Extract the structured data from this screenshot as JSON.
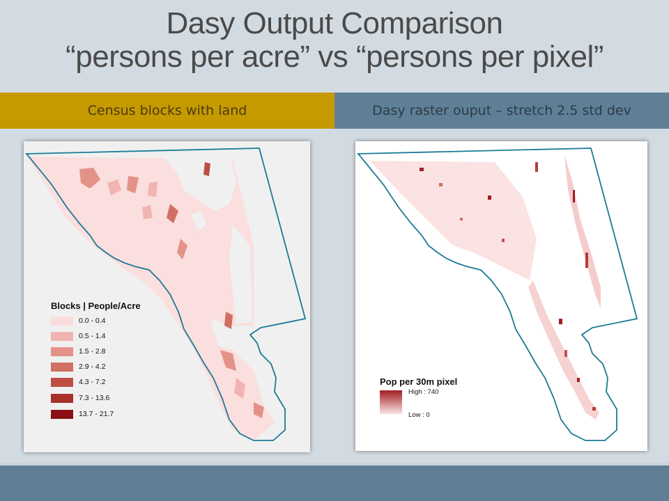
{
  "title": {
    "line1": "Dasy Output Comparison",
    "line2": "“persons per acre” vs “persons per pixel”"
  },
  "headers": {
    "left": "Census blocks with land",
    "right": "Dasy raster ouput – stretch 2.5 std dev"
  },
  "left_map": {
    "legend_title": "Blocks | People/Acre",
    "classes": [
      {
        "label": "0.0 - 0.4",
        "color": "#fbdcdc"
      },
      {
        "label": "0.5 - 1.4",
        "color": "#f2b4b0"
      },
      {
        "label": "1.5 - 2.8",
        "color": "#e39288"
      },
      {
        "label": "2.9 - 4.2",
        "color": "#d07064"
      },
      {
        "label": "4.3 - 7.2",
        "color": "#bd4e44"
      },
      {
        "label": "7.3 - 13.6",
        "color": "#a8302a"
      },
      {
        "label": "13.7 - 21.7",
        "color": "#8b1015"
      }
    ]
  },
  "right_map": {
    "legend_title": "Pop per 30m pixel",
    "high_label": "High : 740",
    "low_label": "Low : 0",
    "ramp_colors": [
      "#a31d22",
      "#f8e4e4"
    ]
  },
  "colors": {
    "boundary": "#1a7a95",
    "header_left_bg": "#c59a00",
    "header_right_bg": "#5f7f96",
    "slide_bg": "#d3dbe2"
  }
}
